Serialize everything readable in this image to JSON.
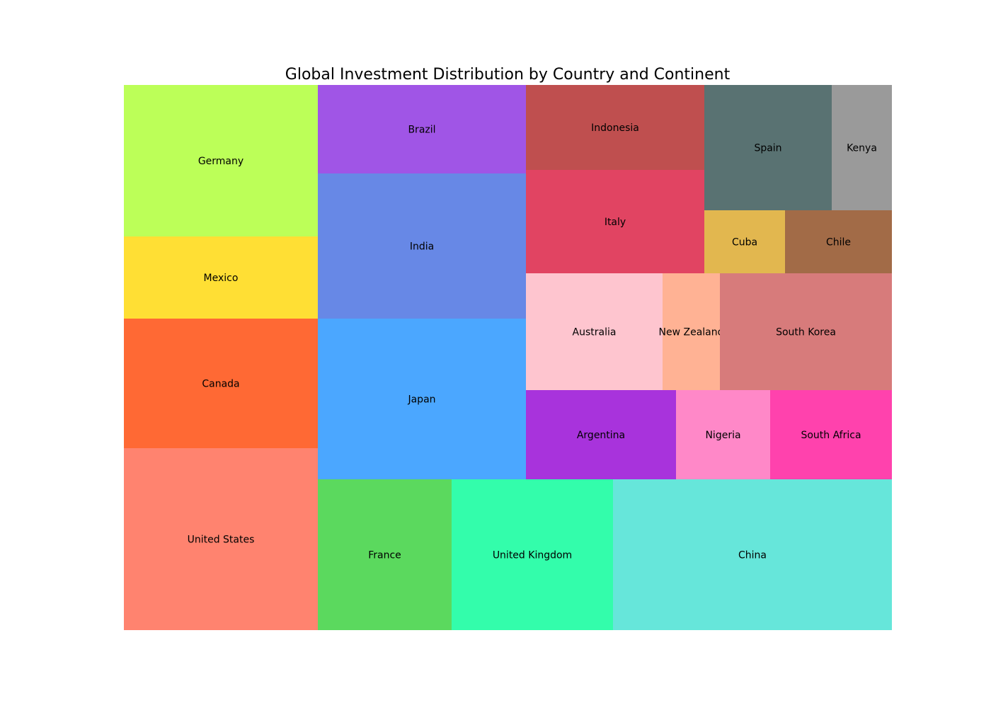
{
  "chart_data": {
    "type": "treemap",
    "title": "Global Investment Distribution by Country and Continent",
    "xlabel": "",
    "ylabel": "",
    "grid": false,
    "legend": "none",
    "items": [
      {
        "label": "United States",
        "value": 1000,
        "color": "#ff836f"
      },
      {
        "label": "Canada",
        "value": 720,
        "color": "#ff6934"
      },
      {
        "label": "Mexico",
        "value": 450,
        "color": "#ffdf34"
      },
      {
        "label": "Germany",
        "value": 840,
        "color": "#bcff58"
      },
      {
        "label": "Japan",
        "value": 950,
        "color": "#4ba7ff"
      },
      {
        "label": "India",
        "value": 860,
        "color": "#6788e6"
      },
      {
        "label": "Brazil",
        "value": 520,
        "color": "#a055e6"
      },
      {
        "label": "France",
        "value": 570,
        "color": "#5bd95e"
      },
      {
        "label": "United Kingdom",
        "value": 690,
        "color": "#33fdab"
      },
      {
        "label": "China",
        "value": 1200,
        "color": "#66e6da"
      },
      {
        "label": "Argentina",
        "value": 380,
        "color": "#a833dc"
      },
      {
        "label": "Nigeria",
        "value": 240,
        "color": "#ff88c8"
      },
      {
        "label": "South Africa",
        "value": 310,
        "color": "#ff42ad"
      },
      {
        "label": "Australia",
        "value": 450,
        "color": "#fec5cf"
      },
      {
        "label": "New Zealand",
        "value": 190,
        "color": "#ffb294"
      },
      {
        "label": "South Korea",
        "value": 560,
        "color": "#d77b7b"
      },
      {
        "label": "Italy",
        "value": 520,
        "color": "#e14462"
      },
      {
        "label": "Indonesia",
        "value": 430,
        "color": "#bf4f4f"
      },
      {
        "label": "Cuba",
        "value": 140,
        "color": "#e2b74f"
      },
      {
        "label": "Chile",
        "value": 190,
        "color": "#a26b47"
      },
      {
        "label": "Spain",
        "value": 460,
        "color": "#597272"
      },
      {
        "label": "Kenya",
        "value": 220,
        "color": "#9a9a9a"
      }
    ]
  }
}
